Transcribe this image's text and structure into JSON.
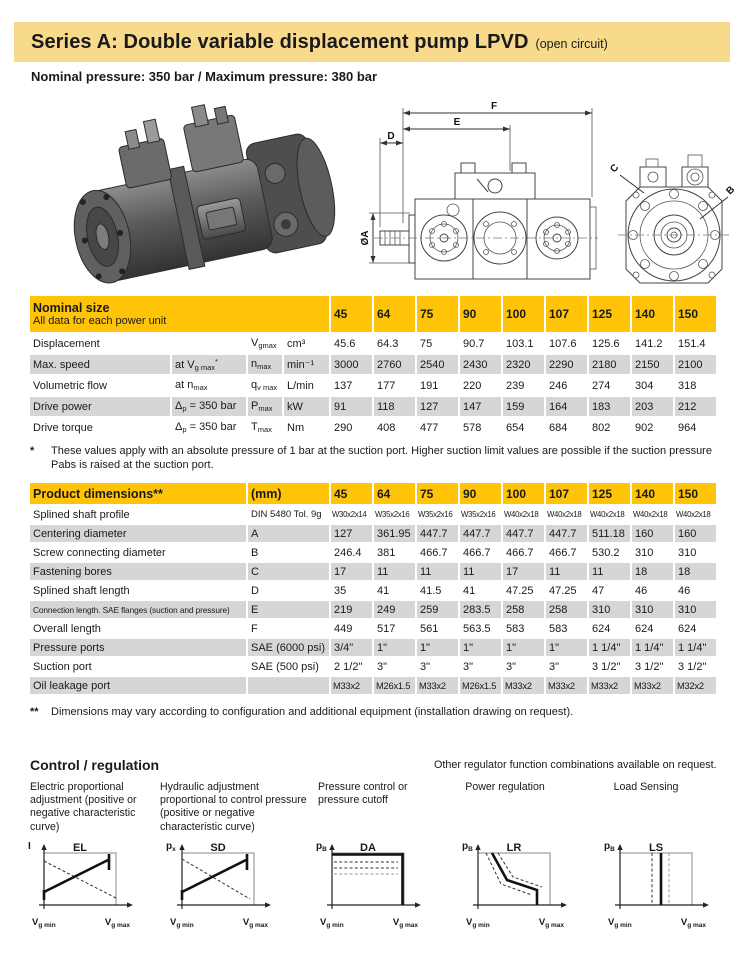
{
  "page": {
    "title": "Series A: Double variable displacement pump LPVD",
    "title_suffix": "(open circuit)",
    "subtitle": "Nominal pressure: 350 bar / Maximum pressure: 380 bar"
  },
  "drawings": {
    "labels": {
      "f": "F",
      "e": "E",
      "d": "D",
      "a": "ØA",
      "c": "C",
      "b": "B"
    }
  },
  "nominal_table": {
    "title": "Nominal size",
    "subtitle": "All data for each power unit",
    "columns": [
      "45",
      "64",
      "75",
      "90",
      "100",
      "107",
      "125",
      "140",
      "150"
    ],
    "rows": [
      {
        "cells": [
          "Displacement",
          "",
          "V~gmax~",
          "cm³"
        ],
        "values": [
          "45.6",
          "64.3",
          "75",
          "90.7",
          "103.1",
          "107.6",
          "125.6",
          "141.2",
          "151.4"
        ]
      },
      {
        "cells": [
          "Max. speed",
          "at V~g max~^*^",
          "n~max~",
          "min⁻¹"
        ],
        "values": [
          "3000",
          "2760",
          "2540",
          "2430",
          "2320",
          "2290",
          "2180",
          "2150",
          "2100"
        ]
      },
      {
        "cells": [
          "Volumetric flow",
          "at n~max~",
          "q~v max~",
          "L/min"
        ],
        "values": [
          "137",
          "177",
          "191",
          "220",
          "239",
          "246",
          "274",
          "304",
          "318"
        ]
      },
      {
        "cells": [
          "Drive power",
          "Δ~p~ = 350 bar",
          "P~max~",
          "kW"
        ],
        "values": [
          "91",
          "118",
          "127",
          "147",
          "159",
          "164",
          "183",
          "203",
          "212"
        ]
      },
      {
        "cells": [
          "Drive torque",
          "Δ~p~ = 350 bar",
          "T~max~",
          "Nm"
        ],
        "values": [
          "290",
          "408",
          "477",
          "578",
          "654",
          "684",
          "802",
          "902",
          "964"
        ]
      }
    ]
  },
  "footnote1": {
    "marker": "*",
    "text": "These values apply with an absolute pressure of 1 bar at the suction port. Higher suction limit values are possible if the suction pressure Pabs is raised at the suction port."
  },
  "dimensions_table": {
    "title": "Product dimensions**",
    "unit_label": "(mm)",
    "columns": [
      "45",
      "64",
      "75",
      "90",
      "100",
      "107",
      "125",
      "140",
      "150"
    ],
    "rows": [
      {
        "cls": "profile",
        "cells": [
          "Splined shaft profile",
          "DIN 5480 Tol. 9g"
        ],
        "values": [
          "W30x2x14",
          "W35x2x16",
          "W35x2x16",
          "W35x2x16",
          "W40x2x18",
          "W40x2x18",
          "W40x2x18",
          "W40x2x18",
          "W40x2x18"
        ]
      },
      {
        "cells": [
          "Centering diameter",
          "A"
        ],
        "values": [
          "127",
          "361.95",
          "447.7",
          "447.7",
          "447.7",
          "447.7",
          "511.18",
          "160",
          "160"
        ]
      },
      {
        "cells": [
          "Screw connecting diameter",
          "B"
        ],
        "values": [
          "246.4",
          "381",
          "466.7",
          "466.7",
          "466.7",
          "466.7",
          "530.2",
          "310",
          "310"
        ]
      },
      {
        "cells": [
          "Fastening bores",
          "C"
        ],
        "values": [
          "17",
          "11",
          "11",
          "11",
          "17",
          "11",
          "11",
          "18",
          "18"
        ]
      },
      {
        "cells": [
          "Splined shaft length",
          "D"
        ],
        "values": [
          "35",
          "41",
          "41.5",
          "41",
          "47.25",
          "47.25",
          "47",
          "46",
          "46"
        ]
      },
      {
        "cls": "condensed",
        "cells": [
          "Connection length. SAE flanges (suction and pressure)",
          "E"
        ],
        "values": [
          "219",
          "249",
          "259",
          "283.5",
          "258",
          "258",
          "310",
          "310",
          "310"
        ]
      },
      {
        "cells": [
          "Overall length",
          "F"
        ],
        "values": [
          "449",
          "517",
          "561",
          "563.5",
          "583",
          "583",
          "624",
          "624",
          "624"
        ]
      },
      {
        "cells": [
          "Pressure ports",
          "SAE (6000 psi)"
        ],
        "values": [
          "3/4\"",
          "1\"",
          "1\"",
          "1\"",
          "1\"",
          "1\"",
          "1 1/4\"",
          "1 1/4\"",
          "1 1/4\""
        ]
      },
      {
        "cells": [
          "Suction port",
          "SAE (500 psi)"
        ],
        "values": [
          "2 1/2\"",
          "3\"",
          "3\"",
          "3\"",
          "3\"",
          "3\"",
          "3 1/2\"",
          "3 1/2\"",
          "3 1/2\""
        ]
      },
      {
        "cls": "small2",
        "cells": [
          "Oil leakage port",
          ""
        ],
        "values": [
          "M33x2",
          "M26x1.5",
          "M33x2",
          "M26x1.5",
          "M33x2",
          "M33x2",
          "M33x2",
          "M33x2",
          "M32x2"
        ]
      }
    ]
  },
  "footnote2": {
    "marker": "**",
    "text": "Dimensions may vary according to configuration and additional equipment (installation drawing on request)."
  },
  "control": {
    "heading": "Control / regulation",
    "note": "Other regulator function combinations available on request.",
    "xmin": "V~g min~",
    "xmax": "V~g max~",
    "cols": [
      {
        "desc": "Electric proportional adjustment (positive or negative characteristic curve)",
        "title": "EL",
        "ylabel": "I"
      },
      {
        "desc": "Hydraulic adjustment proportional to control pressure (positive or negative characteristic curve)",
        "title": "SD",
        "ylabel": "p~x~"
      },
      {
        "desc": "Pressure control or pressure cutoff",
        "title": "DA",
        "ylabel": "p~B~"
      },
      {
        "desc": "Power regulation",
        "title": "LR",
        "ylabel": "p~B~"
      },
      {
        "desc": "Load Sensing",
        "title": "LS",
        "ylabel": "p~B~"
      }
    ]
  },
  "colors": {
    "header_yellow": "#FFC408",
    "banner_yellow": "#F7DA8C",
    "row_gray": "#D6D6D6"
  }
}
